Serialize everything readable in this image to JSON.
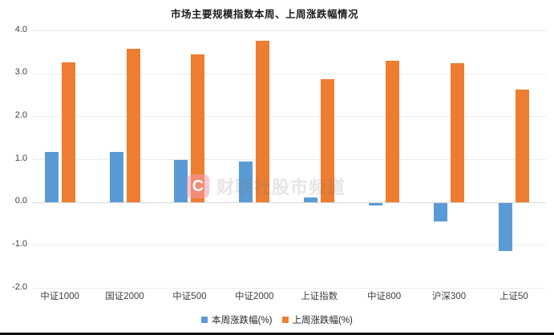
{
  "chart": {
    "title": "市场主要规模指数本周、上周涨跌幅情况",
    "watermark": {
      "logo_letter": "C",
      "text": "财联社股市频道"
    }
  },
  "chart_data": {
    "type": "bar",
    "title": "市场主要规模指数本周、上周涨跌幅情况",
    "categories": [
      "中证1000",
      "国证2000",
      "中证500",
      "中证2000",
      "上证指数",
      "中证800",
      "沪深300",
      "上证50"
    ],
    "series": [
      {
        "name": "本周涨跌幅(%)",
        "color": "#5B9BD5",
        "values": [
          1.17,
          1.17,
          0.99,
          0.94,
          0.1,
          -0.06,
          -0.44,
          -1.13
        ]
      },
      {
        "name": "上周涨跌幅(%)",
        "color": "#ED7D31",
        "values": [
          3.25,
          3.58,
          3.45,
          3.75,
          2.87,
          3.3,
          3.23,
          2.62
        ]
      }
    ],
    "xlabel": "",
    "ylabel": "",
    "ylim": [
      -2.0,
      4.0
    ],
    "ytick_labels": [
      "4.0",
      "3.0",
      "2.0",
      "1.0",
      "0.0",
      "-1.0",
      "-2.0"
    ],
    "grid": true,
    "legend_position": "bottom",
    "axis_text_color": "#404040",
    "grid_color": "#ECECEC",
    "zero_line_color": "#D9D9D9"
  }
}
